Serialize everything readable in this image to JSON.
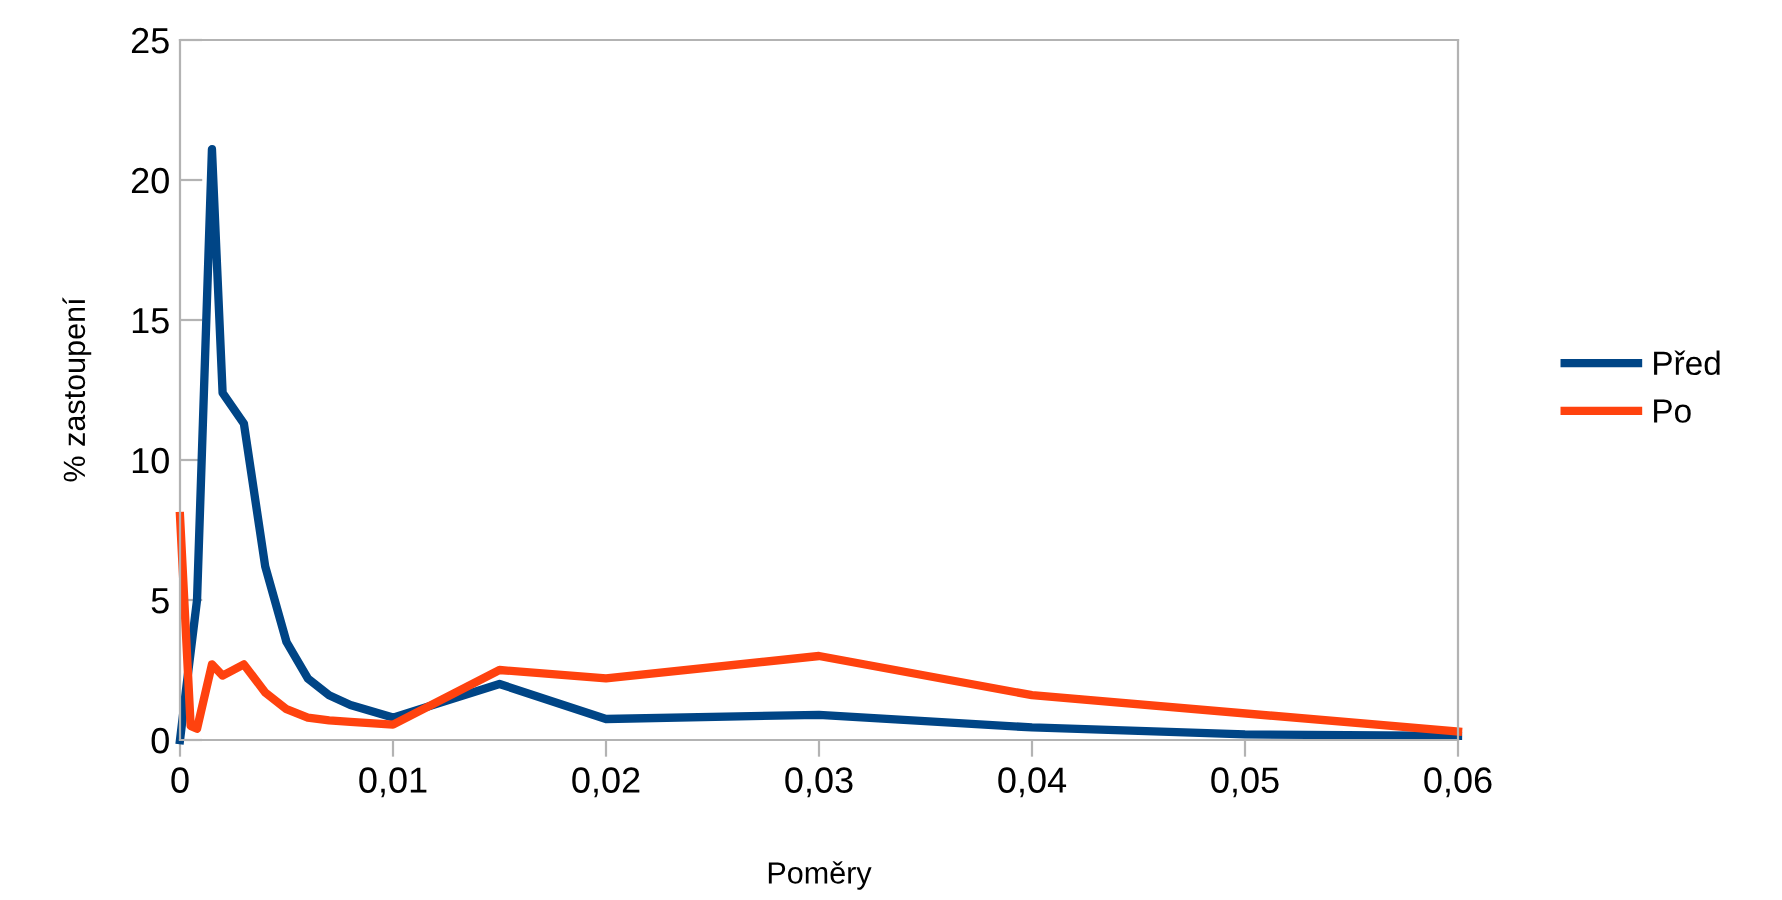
{
  "chart_data": {
    "type": "line",
    "xlabel": "Poměry",
    "ylabel": "% zastoupení",
    "xlim": [
      0,
      0.06
    ],
    "xticks": [
      {
        "value": 0,
        "label": "0"
      },
      {
        "value": 0.01,
        "label": "0,01"
      },
      {
        "value": 0.02,
        "label": "0,02"
      },
      {
        "value": 0.03,
        "label": "0,03"
      },
      {
        "value": 0.04,
        "label": "0,04"
      },
      {
        "value": 0.05,
        "label": "0,05"
      },
      {
        "value": 0.06,
        "label": "0,06"
      }
    ],
    "ylim": [
      0,
      25
    ],
    "yticks": [
      0,
      5,
      10,
      15,
      20,
      25
    ],
    "grid": false,
    "legend": "right",
    "marker": "none",
    "line_style": "solid",
    "series": [
      {
        "name": "Před",
        "color": "#004586",
        "x": [
          0,
          0.0003,
          0.0008,
          0.0015,
          0.002,
          0.003,
          0.004,
          0.005,
          0.006,
          0.007,
          0.008,
          0.01,
          0.015,
          0.02,
          0.03,
          0.04,
          0.05,
          0.06
        ],
        "values": [
          0,
          1.9,
          5.0,
          21.1,
          12.4,
          11.3,
          6.2,
          3.5,
          2.2,
          1.6,
          1.25,
          0.8,
          2.0,
          0.75,
          0.9,
          0.45,
          0.2,
          0.15
        ]
      },
      {
        "name": "Po",
        "color": "#ff420e",
        "x": [
          0,
          0.0005,
          0.0008,
          0.0015,
          0.002,
          0.003,
          0.004,
          0.005,
          0.006,
          0.007,
          0.008,
          0.01,
          0.015,
          0.02,
          0.03,
          0.04,
          0.06
        ],
        "values": [
          8.0,
          0.5,
          0.4,
          2.7,
          2.3,
          2.7,
          1.7,
          1.1,
          0.8,
          0.7,
          0.65,
          0.55,
          2.5,
          2.2,
          3.0,
          1.6,
          0.3
        ]
      }
    ]
  }
}
